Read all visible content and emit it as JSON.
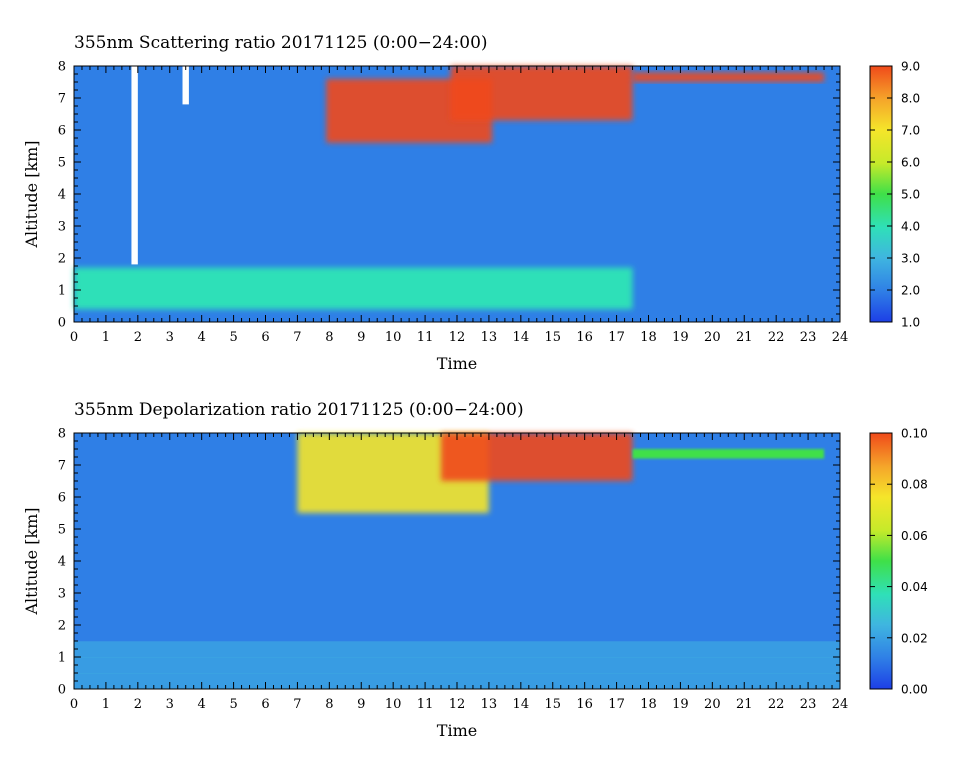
{
  "chart_data": [
    {
      "type": "heatmap",
      "title": "355nm Scattering ratio  20171125 (0:00−24:00)",
      "xlabel": "Time",
      "ylabel": "Altitude [km]",
      "xlim": [
        0,
        24
      ],
      "ylim": [
        0,
        8
      ],
      "xticks": [
        "0",
        "1",
        "2",
        "3",
        "4",
        "5",
        "6",
        "7",
        "8",
        "9",
        "10",
        "11",
        "12",
        "13",
        "14",
        "15",
        "16",
        "17",
        "18",
        "19",
        "20",
        "21",
        "22",
        "23",
        "24"
      ],
      "yticks": [
        "0",
        "1",
        "2",
        "3",
        "4",
        "5",
        "6",
        "7",
        "8"
      ],
      "colorbar": {
        "min": 1.0,
        "max": 9.0,
        "ticks": [
          "1.0",
          "2.0",
          "3.0",
          "4.0",
          "5.0",
          "6.0",
          "7.0",
          "8.0",
          "9.0"
        ]
      },
      "colormap": [
        "#1d3fe6",
        "#2f7fe6",
        "#3fb5e0",
        "#2fe0b8",
        "#3fe048",
        "#c6ea2a",
        "#f5e52a",
        "#f5a52a",
        "#f04a1a"
      ],
      "features": [
        {
          "label": "boundary layer",
          "time_range": [
            0,
            17.5
          ],
          "altitude_range": [
            0.4,
            1.7
          ],
          "value": 3.8
        },
        {
          "label": "cloud",
          "time_range": [
            7.9,
            13.1
          ],
          "altitude_range": [
            5.6,
            7.6
          ],
          "value": 9.0
        },
        {
          "label": "cloud",
          "time_range": [
            11.8,
            17.5
          ],
          "altitude_range": [
            6.3,
            8.0
          ],
          "value": 9.0
        },
        {
          "label": "cloud",
          "time_range": [
            17.5,
            23.5
          ],
          "altitude_range": [
            7.5,
            7.8
          ],
          "value": 8.5
        },
        {
          "label": "missing",
          "time_range": [
            1.8,
            2.0
          ],
          "altitude_range": [
            1.8,
            8.0
          ],
          "value": null
        },
        {
          "label": "missing",
          "time_range": [
            3.4,
            3.6
          ],
          "altitude_range": [
            6.8,
            8.0
          ],
          "value": null
        }
      ]
    },
    {
      "type": "heatmap",
      "title": "355nm Depolarization ratio  20171125 (0:00−24:00)",
      "xlabel": "Time",
      "ylabel": "Altitude [km]",
      "xlim": [
        0,
        24
      ],
      "ylim": [
        0,
        8
      ],
      "xticks": [
        "0",
        "1",
        "2",
        "3",
        "4",
        "5",
        "6",
        "7",
        "8",
        "9",
        "10",
        "11",
        "12",
        "13",
        "14",
        "15",
        "16",
        "17",
        "18",
        "19",
        "20",
        "21",
        "22",
        "23",
        "24"
      ],
      "yticks": [
        "0",
        "1",
        "2",
        "3",
        "4",
        "5",
        "6",
        "7",
        "8"
      ],
      "colorbar": {
        "min": 0.0,
        "max": 0.1,
        "ticks": [
          "0.00",
          "0.02",
          "0.04",
          "0.06",
          "0.08",
          "0.10"
        ]
      },
      "colormap": [
        "#1d3fe6",
        "#2f7fe6",
        "#3fb5e0",
        "#2fe0b8",
        "#3fe048",
        "#c6ea2a",
        "#f5e52a",
        "#f5a52a",
        "#f04a1a"
      ],
      "features": [
        {
          "label": "background",
          "time_range": [
            0,
            24
          ],
          "altitude_range": [
            0,
            8
          ],
          "value": 0.02
        },
        {
          "label": "cloud",
          "time_range": [
            7.0,
            13.0
          ],
          "altitude_range": [
            5.5,
            8.0
          ],
          "value": 0.07
        },
        {
          "label": "cloud",
          "time_range": [
            11.5,
            17.5
          ],
          "altitude_range": [
            6.5,
            8.0
          ],
          "value": 0.1
        },
        {
          "label": "layer",
          "time_range": [
            17.5,
            23.5
          ],
          "altitude_range": [
            7.2,
            7.5
          ],
          "value": 0.05
        }
      ]
    }
  ]
}
